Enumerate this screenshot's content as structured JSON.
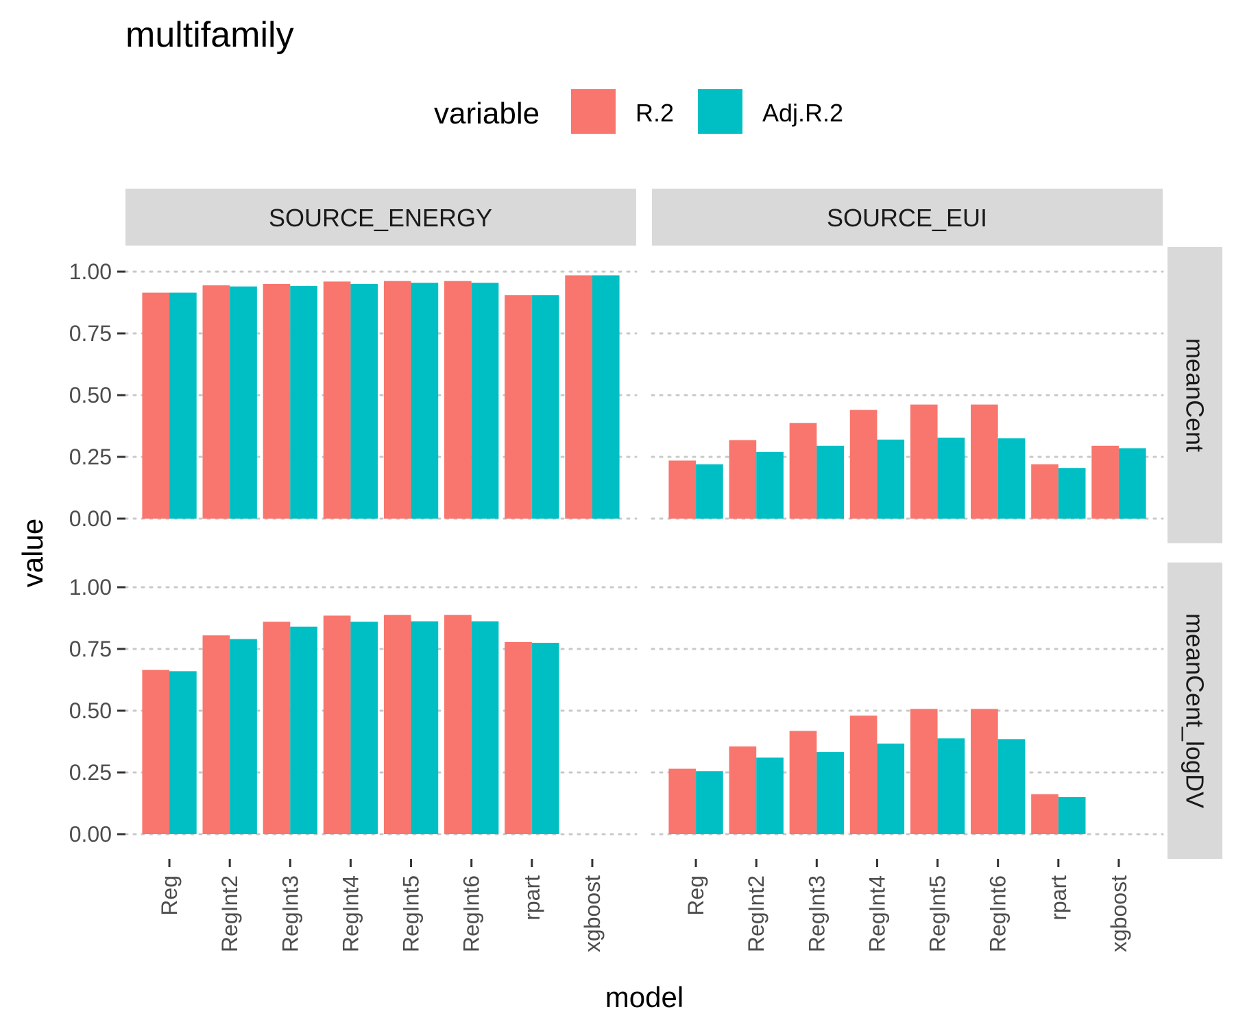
{
  "chart_data": {
    "type": "bar",
    "title": "multifamily",
    "xlabel": "model",
    "ylabel": "value",
    "ylim": [
      0,
      1
    ],
    "yticks": [
      "0.00",
      "0.25",
      "0.50",
      "0.75",
      "1.00"
    ],
    "legend": {
      "title": "variable",
      "placement": "top"
    },
    "categories": [
      "Reg",
      "RegInt2",
      "RegInt3",
      "RegInt4",
      "RegInt5",
      "RegInt6",
      "rpart",
      "xgboost"
    ],
    "series": [
      {
        "name": "R.2",
        "color": "#F8766D"
      },
      {
        "name": "Adj.R.2",
        "color": "#00BFC4"
      }
    ],
    "col_facets": [
      "SOURCE_ENERGY",
      "SOURCE_EUI"
    ],
    "row_facets": [
      "meanCent",
      "meanCent_logDV"
    ],
    "panels": [
      {
        "col": "SOURCE_ENERGY",
        "row": "meanCent",
        "values": {
          "R.2": [
            0.915,
            0.945,
            0.95,
            0.96,
            0.962,
            0.962,
            0.905,
            0.985
          ],
          "Adj.R.2": [
            0.915,
            0.94,
            0.942,
            0.95,
            0.955,
            0.955,
            0.905,
            0.985
          ]
        }
      },
      {
        "col": "SOURCE_EUI",
        "row": "meanCent",
        "values": {
          "R.2": [
            0.235,
            0.318,
            0.387,
            0.44,
            0.462,
            0.462,
            0.22,
            0.295
          ],
          "Adj.R.2": [
            0.22,
            0.27,
            0.295,
            0.32,
            0.328,
            0.325,
            0.205,
            0.285
          ]
        }
      },
      {
        "col": "SOURCE_ENERGY",
        "row": "meanCent_logDV",
        "values": {
          "R.2": [
            0.665,
            0.805,
            0.86,
            0.885,
            0.888,
            0.888,
            0.778,
            null
          ],
          "Adj.R.2": [
            0.66,
            0.79,
            0.84,
            0.86,
            0.862,
            0.862,
            0.775,
            null
          ]
        }
      },
      {
        "col": "SOURCE_EUI",
        "row": "meanCent_logDV",
        "values": {
          "R.2": [
            0.265,
            0.355,
            0.418,
            0.48,
            0.507,
            0.507,
            0.162,
            null
          ],
          "Adj.R.2": [
            0.255,
            0.31,
            0.333,
            0.367,
            0.388,
            0.385,
            0.15,
            null
          ]
        }
      }
    ]
  }
}
